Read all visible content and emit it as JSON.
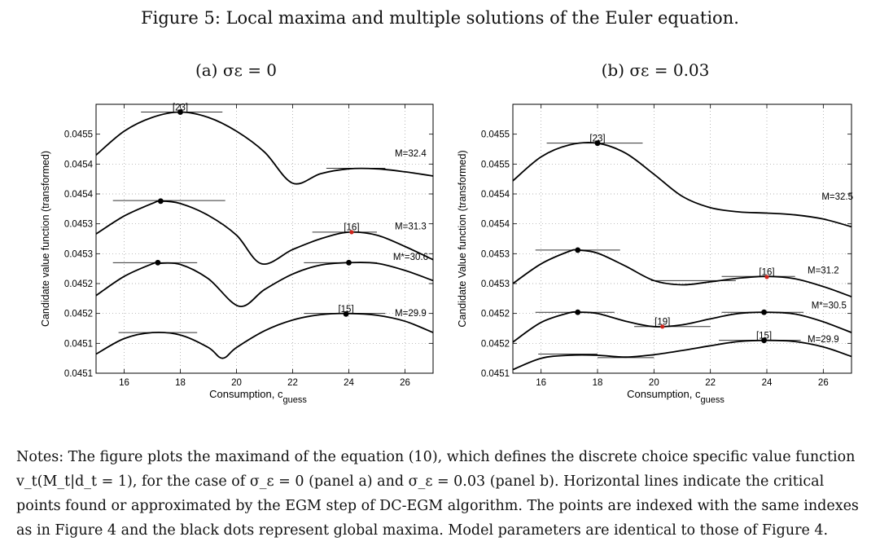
{
  "figure": {
    "caption": "Figure 5: Local maxima and multiple solutions of the Euler equation.",
    "notes": "Notes: The figure plots the maximand of the equation (10), which defines the discrete choice specific value function v_t(M_t|d_t = 1), for the case of σ_ε = 0 (panel a) and σ_ε = 0.03 (panel b). Horizontal lines indicate the critical points found or approximated by the EGM step of DC-EGM algorithm. The points are indexed with the same indexes as in Figure 4 and the black dots represent global maxima. Model parameters are identical to those of Figure 4."
  },
  "chart_data": [
    {
      "type": "line",
      "title": "(a) σε = 0",
      "xlabel": "Consumption, c_guess",
      "ylabel": "Candidate value function (transformed)",
      "xlim": [
        15,
        27
      ],
      "ylim": [
        0.0451,
        0.04555
      ],
      "xticks": [
        16,
        18,
        20,
        22,
        24,
        26
      ],
      "yticks": [
        0.0451,
        0.04515,
        0.0452,
        0.04525,
        0.0453,
        0.04535,
        0.0454,
        0.04545,
        0.0455
      ],
      "ytick_labels": [
        "0.0451",
        "0.0451",
        "0.0452",
        "0.0452",
        "0.0453",
        "0.0453",
        "0.0454",
        "0.0454",
        "0.0455"
      ],
      "grid": true,
      "series": [
        {
          "name": "M=32.4",
          "x": [
            15,
            16,
            17,
            18,
            19,
            20,
            21,
            22,
            23,
            24,
            25,
            26,
            27
          ],
          "y": [
            0.045465,
            0.045505,
            0.045528,
            0.045537,
            0.045528,
            0.045505,
            0.04547,
            0.045418,
            0.045434,
            0.045442,
            0.045442,
            0.045437,
            0.04543
          ]
        },
        {
          "name": "M=31.3",
          "x": [
            15,
            16,
            17,
            17.3,
            18,
            19,
            20,
            20.9,
            22,
            23,
            24,
            25,
            26,
            27
          ],
          "y": [
            0.045333,
            0.045363,
            0.045384,
            0.045388,
            0.045384,
            0.045364,
            0.045331,
            0.045283,
            0.045307,
            0.045325,
            0.045336,
            0.045331,
            0.045312,
            0.04529
          ]
        },
        {
          "name": "M*=30.6",
          "x": [
            15,
            16,
            17,
            17.2,
            18,
            19,
            20.1,
            21,
            22,
            23,
            24,
            25,
            26,
            27
          ],
          "y": [
            0.04523,
            0.045262,
            0.045283,
            0.045284,
            0.045282,
            0.045258,
            0.045212,
            0.04524,
            0.045266,
            0.045281,
            0.045285,
            0.045284,
            0.045272,
            0.045255
          ]
        },
        {
          "name": "M=29.9",
          "x": [
            15,
            16,
            17,
            18,
            19,
            19.5,
            20,
            21,
            22,
            23,
            24,
            25,
            26,
            27
          ],
          "y": [
            0.045132,
            0.045158,
            0.045168,
            0.045164,
            0.045143,
            0.045125,
            0.045143,
            0.045171,
            0.045189,
            0.045198,
            0.0452,
            0.045197,
            0.045187,
            0.045168
          ]
        }
      ],
      "critical_lines": [
        {
          "x1": 16.6,
          "x2": 19.5,
          "y": 0.045537
        },
        {
          "x1": 23.2,
          "x2": 25.3,
          "y": 0.045443
        },
        {
          "x1": 15.6,
          "x2": 19.6,
          "y": 0.045389
        },
        {
          "x1": 22.7,
          "x2": 25.0,
          "y": 0.045336
        },
        {
          "x1": 15.6,
          "x2": 18.6,
          "y": 0.045285
        },
        {
          "x1": 22.4,
          "x2": 25.0,
          "y": 0.045285
        },
        {
          "x1": 15.8,
          "x2": 18.6,
          "y": 0.045168
        },
        {
          "x1": 22.4,
          "x2": 25.3,
          "y": 0.0452
        }
      ],
      "global_maxima": [
        {
          "x": 18.0,
          "y": 0.045537
        },
        {
          "x": 17.3,
          "y": 0.045388
        },
        {
          "x": 17.2,
          "y": 0.045285
        },
        {
          "x": 24.0,
          "y": 0.045285
        },
        {
          "x": 23.9,
          "y": 0.045199
        }
      ],
      "red_points": [
        {
          "x": 24.1,
          "y": 0.045336
        }
      ],
      "annotations": [
        {
          "text": "[23]",
          "x": 18.0,
          "y": 0.04554
        },
        {
          "text": "[16]",
          "x": 24.1,
          "y": 0.045339
        },
        {
          "text": "[15]",
          "x": 23.9,
          "y": 0.045202
        },
        {
          "text": "M=32.4",
          "x": 26.2,
          "y": 0.04546
        },
        {
          "text": "M=31.3",
          "x": 26.2,
          "y": 0.045338
        },
        {
          "text": "M*=30.6",
          "x": 26.2,
          "y": 0.045287
        },
        {
          "text": "M=29.9",
          "x": 26.2,
          "y": 0.045193
        }
      ]
    },
    {
      "type": "line",
      "title": "(b) σε = 0.03",
      "xlabel": "Consumption, c_guess",
      "ylabel": "Candidate Value function (transformed)",
      "xlim": [
        15,
        27
      ],
      "ylim": [
        0.0451,
        0.04555
      ],
      "xticks": [
        16,
        18,
        20,
        22,
        24,
        26
      ],
      "yticks": [
        0.0451,
        0.04515,
        0.0452,
        0.04525,
        0.0453,
        0.04535,
        0.0454,
        0.04545,
        0.0455
      ],
      "ytick_labels": [
        "0.0451",
        "0.0452",
        "0.0452",
        "0.0453",
        "0.0453",
        "0.0454",
        "0.0454",
        "0.0455",
        "0.0455"
      ],
      "grid": true,
      "series": [
        {
          "name": "M=32.5",
          "x": [
            15,
            16,
            17,
            18,
            19,
            20,
            21,
            22,
            23,
            24,
            25,
            26,
            27
          ],
          "y": [
            0.045422,
            0.045462,
            0.045482,
            0.045485,
            0.045468,
            0.045433,
            0.045396,
            0.045377,
            0.04537,
            0.045368,
            0.045365,
            0.045358,
            0.045345
          ]
        },
        {
          "name": "M=31.2",
          "x": [
            15,
            16,
            17,
            17.3,
            18,
            19,
            20,
            21,
            22,
            23,
            24,
            25,
            26,
            27
          ],
          "y": [
            0.04525,
            0.045283,
            0.045304,
            0.045306,
            0.045301,
            0.045279,
            0.045255,
            0.045248,
            0.045253,
            0.045259,
            0.045262,
            0.045258,
            0.045245,
            0.045228
          ]
        },
        {
          "name": "M*=30.5",
          "x": [
            15,
            16,
            17,
            17.3,
            18,
            19,
            20,
            21,
            22,
            23,
            24,
            25,
            26,
            27
          ],
          "y": [
            0.045152,
            0.045185,
            0.045201,
            0.045202,
            0.0452,
            0.045187,
            0.045178,
            0.045181,
            0.045191,
            0.0452,
            0.045202,
            0.045199,
            0.045186,
            0.045168
          ]
        },
        {
          "name": "M=29.9",
          "x": [
            15,
            16,
            17,
            18,
            19,
            20,
            21,
            22,
            23,
            24,
            25,
            26,
            27
          ],
          "y": [
            0.045106,
            0.045125,
            0.04513,
            0.04513,
            0.045127,
            0.045131,
            0.045138,
            0.045146,
            0.045153,
            0.045155,
            0.045153,
            0.045144,
            0.045128
          ]
        }
      ],
      "critical_lines": [
        {
          "x1": 16.2,
          "x2": 19.6,
          "y": 0.045485
        },
        {
          "x1": 15.8,
          "x2": 18.8,
          "y": 0.045306
        },
        {
          "x1": 19.9,
          "x2": 22.9,
          "y": 0.045255
        },
        {
          "x1": 22.4,
          "x2": 25.0,
          "y": 0.045262
        },
        {
          "x1": 15.8,
          "x2": 18.6,
          "y": 0.045202
        },
        {
          "x1": 19.3,
          "x2": 22.0,
          "y": 0.045178
        },
        {
          "x1": 22.4,
          "x2": 25.3,
          "y": 0.045202
        },
        {
          "x1": 15.9,
          "x2": 18.0,
          "y": 0.045132
        },
        {
          "x1": 18.0,
          "x2": 20.0,
          "y": 0.045126
        },
        {
          "x1": 22.3,
          "x2": 25.2,
          "y": 0.045155
        }
      ],
      "global_maxima": [
        {
          "x": 18.0,
          "y": 0.045485
        },
        {
          "x": 17.3,
          "y": 0.045306
        },
        {
          "x": 17.3,
          "y": 0.045202
        },
        {
          "x": 23.9,
          "y": 0.045202
        },
        {
          "x": 23.9,
          "y": 0.045155
        }
      ],
      "red_points": [
        {
          "x": 24.0,
          "y": 0.045261
        },
        {
          "x": 20.3,
          "y": 0.045178
        }
      ],
      "annotations": [
        {
          "text": "[23]",
          "x": 18.0,
          "y": 0.045488
        },
        {
          "text": "[16]",
          "x": 24.0,
          "y": 0.045264
        },
        {
          "text": "[19]",
          "x": 20.3,
          "y": 0.045181
        },
        {
          "text": "[15]",
          "x": 23.9,
          "y": 0.045158
        },
        {
          "text": "M=32.5",
          "x": 26.5,
          "y": 0.045388
        },
        {
          "text": "M=31.2",
          "x": 26.0,
          "y": 0.045264
        },
        {
          "text": "M*=30.5",
          "x": 26.2,
          "y": 0.045206
        },
        {
          "text": "M=29.9",
          "x": 26.0,
          "y": 0.045149
        }
      ]
    }
  ]
}
